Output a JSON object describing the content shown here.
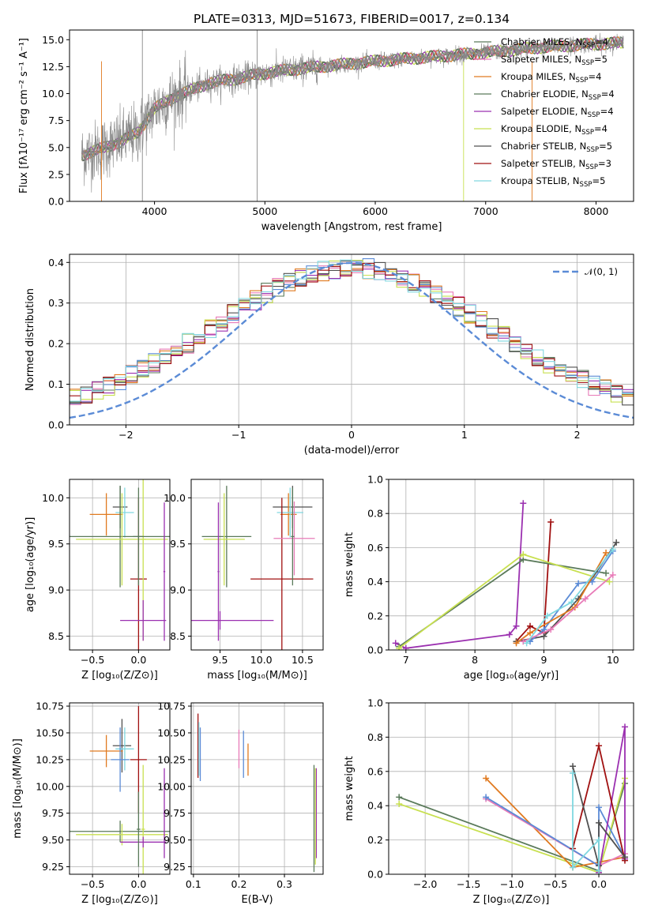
{
  "figure_title": "PLATE=0313, MJD=51673, FIBERID=0017, z=0.134",
  "colors": [
    "#5a7a5a",
    "#e87bb8",
    "#e07a20",
    "#5a7a5a",
    "#9b30b0",
    "#c8e050",
    "#505050",
    "#a01010",
    "#80d8e0"
  ],
  "chart_data": [
    {
      "id": "spectrum",
      "type": "line",
      "title": "PLATE=0313, MJD=51673, FIBERID=0017, z=0.134",
      "xlabel": "wavelength [Angstrom, rest frame]",
      "ylabel": "Flux [fλ10⁻¹⁷ erg cm⁻² s⁻¹ A⁻¹]",
      "xlim": [
        3230,
        8340
      ],
      "ylim": [
        0,
        15.9
      ],
      "xticks": [
        4000,
        5000,
        6000,
        7000,
        8000
      ],
      "xtick_labels": [
        "4000",
        "5000",
        "6000",
        "7000",
        "8000"
      ],
      "yticks": [
        0,
        2.5,
        5.0,
        7.5,
        10.0,
        12.5,
        15.0
      ],
      "ytick_labels": [
        "0.0",
        "2.5",
        "5.0",
        "7.5",
        "10.0",
        "12.5",
        "15.0"
      ],
      "continuum": [
        [
          3340,
          4.3
        ],
        [
          3500,
          4.8
        ],
        [
          3700,
          5.6
        ],
        [
          3850,
          6.4
        ],
        [
          4000,
          8.6
        ],
        [
          4200,
          9.8
        ],
        [
          4500,
          11.0
        ],
        [
          4800,
          11.5
        ],
        [
          5000,
          11.9
        ],
        [
          5300,
          12.3
        ],
        [
          5600,
          12.6
        ],
        [
          6000,
          13.0
        ],
        [
          6500,
          13.4
        ],
        [
          7000,
          13.8
        ],
        [
          7500,
          14.3
        ],
        [
          8000,
          14.6
        ],
        [
          8250,
          14.7
        ]
      ],
      "series": [
        {
          "name": "Chabrier MILES, N_SSP=4",
          "label_main": "Chabrier MILES, N",
          "label_sub": "SSP",
          "label_tail": "=4",
          "color": "#5a7a5a"
        },
        {
          "name": "Salpeter MILES, N_SSP=5",
          "label_main": "Salpeter MILES, N",
          "label_sub": "SSP",
          "label_tail": "=5",
          "color": "#e87bb8"
        },
        {
          "name": "Kroupa MILES, N_SSP=4",
          "label_main": "Kroupa MILES, N",
          "label_sub": "SSP",
          "label_tail": "=4",
          "color": "#e07a20"
        },
        {
          "name": "Chabrier ELODIE, N_SSP=4",
          "label_main": "Chabrier ELODIE, N",
          "label_sub": "SSP",
          "label_tail": "=4",
          "color": "#5a7a5a"
        },
        {
          "name": "Salpeter ELODIE, N_SSP=4",
          "label_main": "Salpeter ELODIE, N",
          "label_sub": "SSP",
          "label_tail": "=4",
          "color": "#9b30b0"
        },
        {
          "name": "Kroupa ELODIE, N_SSP=4",
          "label_main": "Kroupa ELODIE, N",
          "label_sub": "SSP",
          "label_tail": "=4",
          "color": "#c8e050"
        },
        {
          "name": "Chabrier STELIB, N_SSP=5",
          "label_main": "Chabrier STELIB, N",
          "label_sub": "SSP",
          "label_tail": "=5",
          "color": "#505050"
        },
        {
          "name": "Salpeter STELIB, N_SSP=3",
          "label_main": "Salpeter STELIB, N",
          "label_sub": "SSP",
          "label_tail": "=3",
          "color": "#a01010"
        },
        {
          "name": "Kroupa STELIB, N_SSP=5",
          "label_main": "Kroupa STELIB, N",
          "label_sub": "SSP",
          "label_tail": "=5",
          "color": "#80d8e0"
        }
      ]
    },
    {
      "id": "residuals",
      "type": "histogram",
      "xlabel": "(data-model)/error",
      "ylabel": "Normed distribution",
      "xlim": [
        -2.5,
        2.5
      ],
      "ylim": [
        0,
        0.42
      ],
      "xticks": [
        -2,
        -1,
        0,
        1,
        2
      ],
      "xtick_labels": [
        "−2",
        "−1",
        "0",
        "1",
        "2"
      ],
      "yticks": [
        0,
        0.1,
        0.2,
        0.3,
        0.4
      ],
      "ytick_labels": [
        "0.0",
        "0.1",
        "0.2",
        "0.3",
        "0.4"
      ],
      "legend": "𝒩(0, 1)",
      "legend_color": "#5b8bd6",
      "bins": 50,
      "hist_colors": [
        "#5a7a5a",
        "#e87bb8",
        "#e07a20",
        "#5b8bd6",
        "#9b30b0",
        "#c8e050",
        "#505050",
        "#a01010",
        "#80d8e0"
      ]
    },
    {
      "id": "age_vs_Z",
      "type": "errorbar",
      "xlabel": "Z [log₁₀(Z/Z⊙)]",
      "ylabel": "age  [log₁₀(age/yr)]",
      "xlim": [
        -0.75,
        0.34
      ],
      "ylim": [
        8.35,
        10.2
      ],
      "xticks": [
        -0.5,
        0.0
      ],
      "xtick_labels": [
        "−0.5",
        "0.0"
      ],
      "yticks": [
        8.5,
        9.0,
        9.5,
        10.0
      ],
      "ytick_labels": [
        "8.5",
        "9.0",
        "9.5",
        "10.0"
      ],
      "points": [
        {
          "x": -0.2,
          "y": 9.9,
          "xerr": 0.08,
          "yerr": 0.23,
          "color": "#505050"
        },
        {
          "x": -0.35,
          "y": 9.82,
          "xerr": 0.18,
          "yerr": 0.23,
          "color": "#e07a20"
        },
        {
          "x": -0.15,
          "y": 9.84,
          "xerr": 0.1,
          "yerr": 0.27,
          "color": "#80d8e0"
        },
        {
          "x": 0.0,
          "y": 9.12,
          "xerr": 0.09,
          "yerr": 0.88,
          "color": "#a01010"
        },
        {
          "x": -0.2,
          "y": 9.58,
          "xerr": 0.55,
          "yerr": 0.55,
          "color": "#5a7a5a"
        },
        {
          "x": -0.18,
          "y": 9.55,
          "xerr": 0.5,
          "yerr": 0.5,
          "color": "#c8e050"
        },
        {
          "x": 0.05,
          "y": 9.55,
          "xerr": 0.03,
          "yerr": 1.1,
          "color": "#c8e050"
        },
        {
          "x": 0.05,
          "y": 8.67,
          "xerr": 0.25,
          "yerr": 0.22,
          "color": "#9b30b0"
        },
        {
          "x": 0.28,
          "y": 9.2,
          "xerr": 0.01,
          "yerr": 0.75,
          "color": "#9b30b0"
        },
        {
          "x": 0.0,
          "y": 9.58,
          "xerr": 0.06,
          "yerr": 0.53,
          "color": "#5a7a5a"
        }
      ]
    },
    {
      "id": "age_vs_mass",
      "type": "errorbar",
      "xlabel": "mass [log₁₀(M/M⊙)]",
      "ylabel": "",
      "xlim": [
        9.15,
        10.75
      ],
      "ylim": [
        8.35,
        10.2
      ],
      "xticks": [
        9.5,
        10.0,
        10.5
      ],
      "xtick_labels": [
        "9.5",
        "10.0",
        "10.5"
      ],
      "yticks": [
        8.5,
        9.0,
        9.5,
        10.0
      ],
      "ytick_labels": [
        "8.5",
        "9.0",
        "9.5",
        "10.0"
      ],
      "points": [
        {
          "x": 10.38,
          "y": 9.9,
          "xerr": 0.24,
          "yerr": 0.23,
          "color": "#505050"
        },
        {
          "x": 10.33,
          "y": 9.82,
          "xerr": 0.1,
          "yerr": 0.23,
          "color": "#e07a20"
        },
        {
          "x": 10.35,
          "y": 9.84,
          "xerr": 0.16,
          "yerr": 0.27,
          "color": "#80d8e0"
        },
        {
          "x": 10.25,
          "y": 9.12,
          "xerr": 0.38,
          "yerr": 0.88,
          "color": "#a01010"
        },
        {
          "x": 9.58,
          "y": 9.58,
          "xerr": 0.3,
          "yerr": 0.55,
          "color": "#5a7a5a"
        },
        {
          "x": 9.55,
          "y": 9.55,
          "xerr": 0.25,
          "yerr": 0.5,
          "color": "#c8e050"
        },
        {
          "x": 10.4,
          "y": 9.56,
          "xerr": 0.25,
          "yerr": 0.4,
          "color": "#e87bb8"
        },
        {
          "x": 9.5,
          "y": 8.67,
          "xerr": 0.65,
          "yerr": 0.1,
          "color": "#9b30b0"
        },
        {
          "x": 9.48,
          "y": 9.2,
          "xerr": 0.01,
          "yerr": 0.75,
          "color": "#9b30b0"
        },
        {
          "x": 10.38,
          "y": 9.58,
          "xerr": 0.02,
          "yerr": 0.53,
          "color": "#5a7a5a"
        }
      ]
    },
    {
      "id": "weight_vs_age",
      "type": "line",
      "xlabel": "age  [log₁₀(age/yr)]",
      "ylabel": "mass weight",
      "xlim": [
        6.75,
        10.3
      ],
      "ylim": [
        0,
        1.0
      ],
      "xticks": [
        7,
        8,
        9,
        10
      ],
      "xtick_labels": [
        "7",
        "8",
        "9",
        "10"
      ],
      "yticks": [
        0,
        0.2,
        0.4,
        0.6,
        0.8,
        1.0
      ],
      "ytick_labels": [
        "0.0",
        "0.2",
        "0.4",
        "0.6",
        "0.8",
        "1.0"
      ],
      "series": [
        {
          "color": "#9b30b0",
          "points": [
            [
              6.85,
              0.04
            ],
            [
              7.0,
              0.01
            ],
            [
              8.5,
              0.09
            ],
            [
              8.6,
              0.14
            ],
            [
              8.7,
              0.86
            ]
          ]
        },
        {
          "color": "#a01010",
          "points": [
            [
              8.6,
              0.05
            ],
            [
              8.8,
              0.14
            ],
            [
              9.0,
              0.1
            ],
            [
              9.1,
              0.75
            ]
          ]
        },
        {
          "color": "#5a7a5a",
          "points": [
            [
              6.9,
              0.02
            ],
            [
              8.7,
              0.53
            ],
            [
              9.9,
              0.45
            ]
          ]
        },
        {
          "color": "#c8e050",
          "points": [
            [
              6.9,
              0.01
            ],
            [
              8.7,
              0.56
            ],
            [
              9.95,
              0.4
            ]
          ]
        },
        {
          "color": "#505050",
          "points": [
            [
              8.6,
              0.05
            ],
            [
              9.0,
              0.08
            ],
            [
              9.5,
              0.3
            ],
            [
              10.05,
              0.63
            ]
          ]
        },
        {
          "color": "#5b8bd6",
          "points": [
            [
              8.8,
              0.05
            ],
            [
              9.0,
              0.12
            ],
            [
              9.5,
              0.39
            ],
            [
              9.7,
              0.4
            ],
            [
              10.0,
              0.58
            ]
          ]
        },
        {
          "color": "#e07a20",
          "points": [
            [
              8.6,
              0.04
            ],
            [
              8.8,
              0.1
            ],
            [
              9.45,
              0.25
            ],
            [
              9.9,
              0.57
            ]
          ]
        },
        {
          "color": "#e87bb8",
          "points": [
            [
              8.7,
              0.05
            ],
            [
              9.1,
              0.12
            ],
            [
              9.6,
              0.3
            ],
            [
              10.0,
              0.44
            ]
          ]
        },
        {
          "color": "#80d8e0",
          "points": [
            [
              8.75,
              0.04
            ],
            [
              9.05,
              0.2
            ],
            [
              9.4,
              0.28
            ],
            [
              10.0,
              0.59
            ]
          ]
        }
      ]
    },
    {
      "id": "mass_vs_Z",
      "type": "errorbar",
      "xlabel": "Z [log₁₀(Z/Z⊙)]",
      "ylabel": "mass [log₁₀(M/M⊙)]",
      "xlim": [
        -0.75,
        0.34
      ],
      "ylim": [
        9.18,
        10.78
      ],
      "xticks": [
        -0.5,
        0.0
      ],
      "xtick_labels": [
        "−0.5",
        "0.0"
      ],
      "yticks": [
        9.25,
        9.5,
        9.75,
        10.0,
        10.25,
        10.5,
        10.75
      ],
      "ytick_labels": [
        "9.25",
        "9.50",
        "9.75",
        "10.00",
        "10.25",
        "10.50",
        "10.75"
      ],
      "points": [
        {
          "x": -0.18,
          "y": 10.38,
          "xerr": 0.1,
          "yerr": 0.25,
          "color": "#505050"
        },
        {
          "x": -0.35,
          "y": 10.33,
          "xerr": 0.18,
          "yerr": 0.15,
          "color": "#e07a20"
        },
        {
          "x": -0.15,
          "y": 10.35,
          "xerr": 0.1,
          "yerr": 0.2,
          "color": "#80d8e0"
        },
        {
          "x": 0.0,
          "y": 10.25,
          "xerr": 0.09,
          "yerr": 0.5,
          "color": "#a01010"
        },
        {
          "x": -0.2,
          "y": 10.25,
          "xerr": 0.1,
          "yerr": 0.3,
          "color": "#5b8bd6"
        },
        {
          "x": -0.2,
          "y": 9.58,
          "xerr": 0.55,
          "yerr": 0.1,
          "color": "#5a7a5a"
        },
        {
          "x": -0.18,
          "y": 9.55,
          "xerr": 0.5,
          "yerr": 0.1,
          "color": "#c8e050"
        },
        {
          "x": 0.05,
          "y": 9.6,
          "xerr": 0.02,
          "yerr": 0.6,
          "color": "#c8e050"
        },
        {
          "x": 0.05,
          "y": 9.48,
          "xerr": 0.25,
          "yerr": 0.05,
          "color": "#9b30b0"
        },
        {
          "x": 0.28,
          "y": 9.75,
          "xerr": 0.01,
          "yerr": 0.42,
          "color": "#9b30b0"
        },
        {
          "x": 0.0,
          "y": 9.6,
          "xerr": 0.02,
          "yerr": 0.35,
          "color": "#5a7a5a"
        }
      ]
    },
    {
      "id": "mass_vs_ebv",
      "type": "errorbar",
      "xlabel": "E(B-V)",
      "ylabel": "",
      "xlim": [
        0.095,
        0.385
      ],
      "ylim": [
        9.18,
        10.78
      ],
      "xticks": [
        0.1,
        0.2,
        0.3
      ],
      "xtick_labels": [
        "0.1",
        "0.2",
        "0.3"
      ],
      "yticks": [
        9.25,
        9.5,
        9.75,
        10.0,
        10.25,
        10.5,
        10.75
      ],
      "ytick_labels": [
        "9.25",
        "9.50",
        "9.75",
        "10.00",
        "10.25",
        "10.50",
        "10.75"
      ],
      "points": [
        {
          "x": 0.11,
          "y": 10.38,
          "xerr": 0,
          "yerr": 0.3,
          "color": "#a01010"
        },
        {
          "x": 0.115,
          "y": 10.3,
          "xerr": 0,
          "yerr": 0.25,
          "color": "#5b8bd6"
        },
        {
          "x": 0.112,
          "y": 10.35,
          "xerr": 0,
          "yerr": 0.25,
          "color": "#80d8e0"
        },
        {
          "x": 0.2,
          "y": 10.35,
          "xerr": 0,
          "yerr": 0.18,
          "color": "#e87bb8"
        },
        {
          "x": 0.21,
          "y": 10.3,
          "xerr": 0,
          "yerr": 0.22,
          "color": "#5b8bd6"
        },
        {
          "x": 0.22,
          "y": 10.25,
          "xerr": 0,
          "yerr": 0.15,
          "color": "#e07a20"
        },
        {
          "x": 0.365,
          "y": 9.7,
          "xerr": 0,
          "yerr": 0.5,
          "color": "#5a7a5a"
        },
        {
          "x": 0.37,
          "y": 9.75,
          "xerr": 0,
          "yerr": 0.42,
          "color": "#9b30b0"
        },
        {
          "x": 0.368,
          "y": 9.72,
          "xerr": 0,
          "yerr": 0.45,
          "color": "#c8e050"
        }
      ]
    },
    {
      "id": "weight_vs_Z",
      "type": "line",
      "xlabel": "Z [log₁₀(Z/Z⊙)]",
      "ylabel": "mass weight",
      "xlim": [
        -2.42,
        0.4
      ],
      "ylim": [
        0,
        1.0
      ],
      "xticks": [
        -2.0,
        -1.5,
        -1.0,
        -0.5,
        0.0
      ],
      "xtick_labels": [
        "−2.0",
        "−1.5",
        "−1.0",
        "−0.5",
        "0.0"
      ],
      "yticks": [
        0,
        0.2,
        0.4,
        0.6,
        0.8,
        1.0
      ],
      "ytick_labels": [
        "0.0",
        "0.2",
        "0.4",
        "0.6",
        "0.8",
        "1.0"
      ],
      "series": [
        {
          "color": "#5a7a5a",
          "points": [
            [
              -2.3,
              0.45
            ],
            [
              0.0,
              0.02
            ],
            [
              0.3,
              0.53
            ]
          ]
        },
        {
          "color": "#c8e050",
          "points": [
            [
              -2.3,
              0.41
            ],
            [
              0.0,
              0.01
            ],
            [
              0.3,
              0.56
            ]
          ]
        },
        {
          "color": "#e07a20",
          "points": [
            [
              -1.3,
              0.56
            ],
            [
              -0.3,
              0.04
            ],
            [
              0.3,
              0.1
            ]
          ]
        },
        {
          "color": "#e87bb8",
          "points": [
            [
              -1.3,
              0.44
            ],
            [
              0.0,
              0.05
            ],
            [
              0.3,
              0.12
            ]
          ]
        },
        {
          "color": "#5b8bd6",
          "points": [
            [
              -1.3,
              0.45
            ],
            [
              0.0,
              0.05
            ],
            [
              0.0,
              0.39
            ],
            [
              0.3,
              0.1
            ]
          ]
        },
        {
          "color": "#9b30b0",
          "points": [
            [
              0.0,
              0.01
            ],
            [
              0.3,
              0.86
            ],
            [
              0.3,
              0.09
            ]
          ]
        },
        {
          "color": "#a01010",
          "points": [
            [
              -0.3,
              0.15
            ],
            [
              0.0,
              0.75
            ],
            [
              0.3,
              0.08
            ]
          ]
        },
        {
          "color": "#505050",
          "points": [
            [
              -0.3,
              0.63
            ],
            [
              0.0,
              0.05
            ],
            [
              0.0,
              0.3
            ],
            [
              0.3,
              0.1
            ]
          ]
        },
        {
          "color": "#80d8e0",
          "points": [
            [
              -0.3,
              0.59
            ],
            [
              -0.3,
              0.04
            ],
            [
              0.0,
              0.2
            ],
            [
              0.0,
              0.02
            ]
          ]
        }
      ]
    }
  ]
}
